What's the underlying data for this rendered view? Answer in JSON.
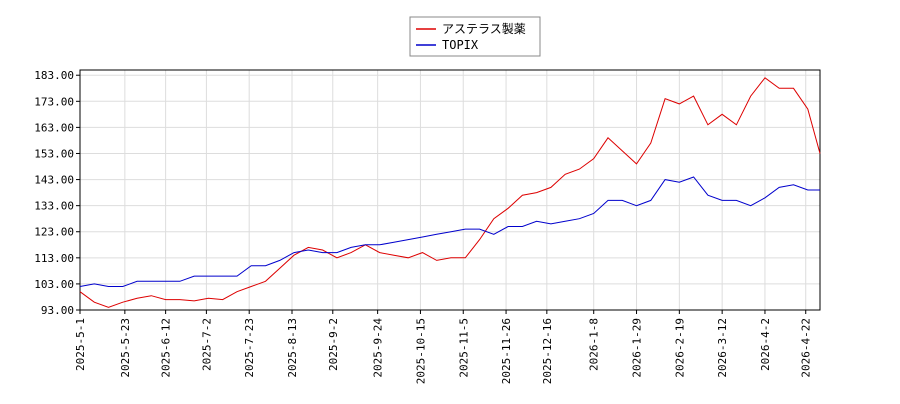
{
  "chart_data": {
    "type": "line",
    "x": [
      "2025-5-1",
      "2025-5-8",
      "2025-5-15",
      "2025-5-22",
      "2025-5-29",
      "2025-6-5",
      "2025-6-12",
      "2025-6-19",
      "2025-6-26",
      "2025-7-3",
      "2025-7-10",
      "2025-7-17",
      "2025-7-24",
      "2025-7-31",
      "2025-8-7",
      "2025-8-14",
      "2025-8-21",
      "2025-8-28",
      "2025-9-4",
      "2025-9-11",
      "2025-9-18",
      "2025-9-25",
      "2025-10-2",
      "2025-10-9",
      "2025-10-16",
      "2025-10-23",
      "2025-10-30",
      "2025-11-6",
      "2025-11-13",
      "2025-11-20",
      "2025-11-27",
      "2025-12-4",
      "2025-12-11",
      "2025-12-18",
      "2025-12-25",
      "2026-1-1",
      "2026-1-8",
      "2026-1-15",
      "2026-1-22",
      "2026-1-29",
      "2026-2-5",
      "2026-2-12",
      "2026-2-19",
      "2026-2-26",
      "2026-3-5",
      "2026-3-12",
      "2026-3-19",
      "2026-3-26",
      "2026-4-2",
      "2026-4-9",
      "2026-4-16",
      "2026-4-23",
      "2026-4-29"
    ],
    "series": [
      {
        "name": "アステラス製薬",
        "color": "#dd0000",
        "values": [
          100,
          96,
          94,
          96,
          97.5,
          98.5,
          97,
          97,
          96.5,
          97.5,
          97,
          100,
          102,
          104,
          109,
          114,
          117,
          116,
          113,
          115,
          118,
          115,
          114,
          113,
          115,
          112,
          113,
          113,
          120,
          128,
          132,
          137,
          138,
          140,
          145,
          147,
          151,
          159,
          154,
          149,
          157,
          174,
          172,
          175,
          164,
          168,
          164,
          175,
          182,
          178,
          178,
          170,
          153
        ]
      },
      {
        "name": "TOPIX",
        "color": "#0000cc",
        "values": [
          102,
          103,
          102,
          102,
          104,
          104,
          104,
          104,
          106,
          106,
          106,
          106,
          110,
          110,
          112,
          115,
          116,
          115,
          115,
          117,
          118,
          118,
          119,
          120,
          121,
          122,
          123,
          124,
          124,
          122,
          125,
          125,
          127,
          126,
          127,
          128,
          130,
          135,
          135,
          133,
          135,
          143,
          142,
          144,
          137,
          135,
          135,
          133,
          136,
          140,
          141,
          139,
          139
        ]
      }
    ],
    "xlim": [
      "2025-5-1",
      "2026-4-29"
    ],
    "xticks": [
      "2025-5-1",
      "2025-5-23",
      "2025-6-12",
      "2025-7-2",
      "2025-7-23",
      "2025-8-13",
      "2025-9-2",
      "2025-9-24",
      "2025-10-15",
      "2025-11-5",
      "2025-11-26",
      "2025-12-16",
      "2026-1-8",
      "2026-1-29",
      "2026-2-19",
      "2026-3-12",
      "2026-4-2",
      "2026-4-22"
    ],
    "ylim": [
      93,
      185
    ],
    "yticks": [
      {
        "value": 93,
        "label": "93.00"
      },
      {
        "value": 103,
        "label": "103.00"
      },
      {
        "value": 113,
        "label": "113.00"
      },
      {
        "value": 123,
        "label": "123.00"
      },
      {
        "value": 133,
        "label": "133.00"
      },
      {
        "value": 143,
        "label": "143.00"
      },
      {
        "value": 153,
        "label": "153.00"
      },
      {
        "value": 163,
        "label": "163.00"
      },
      {
        "value": 173,
        "label": "173.00"
      },
      {
        "value": 183,
        "label": "183.00"
      }
    ],
    "grid": true,
    "legend": "top"
  }
}
